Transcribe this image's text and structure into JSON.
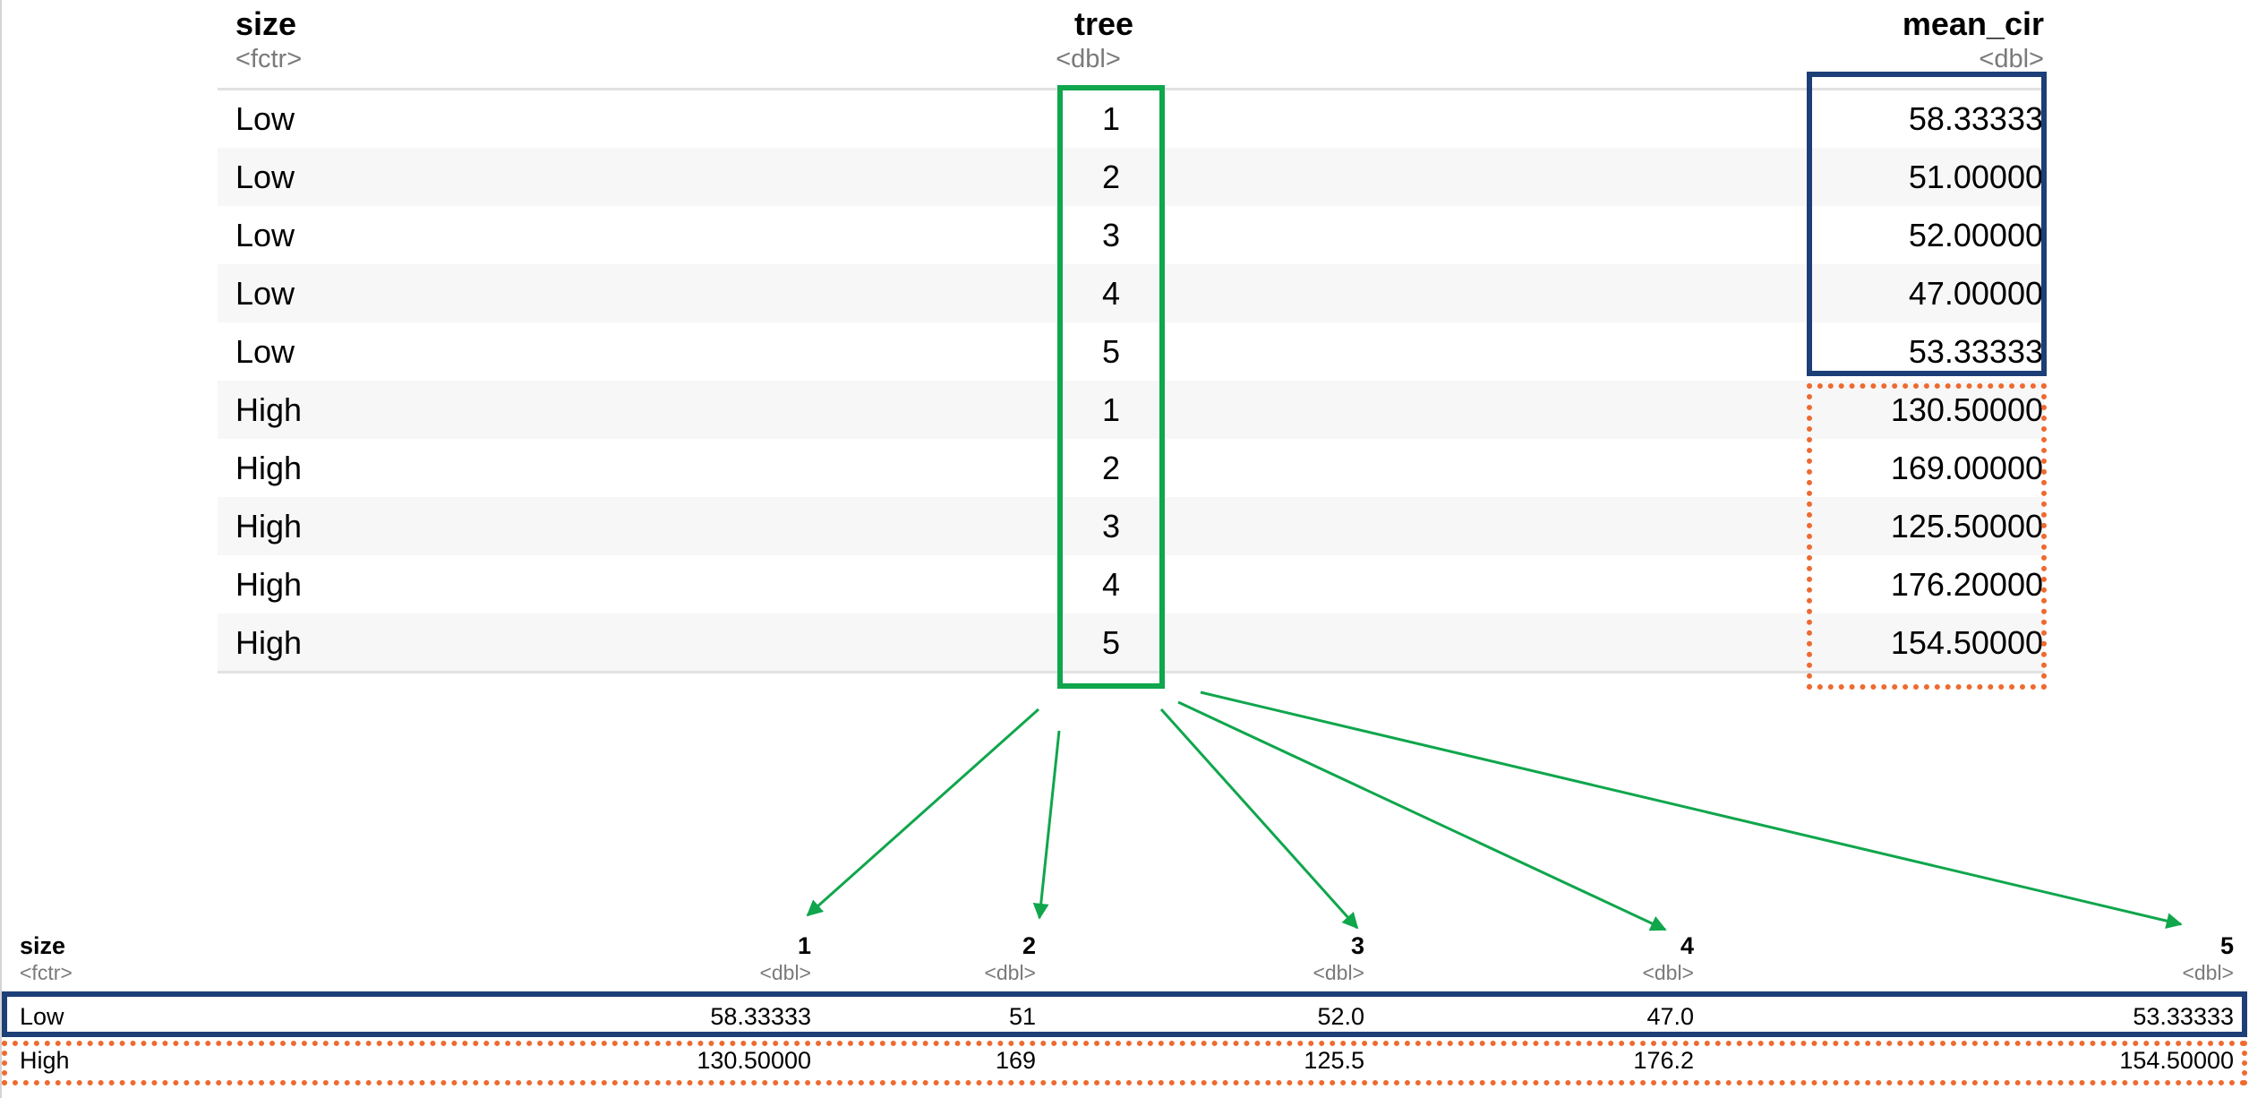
{
  "long_table": {
    "columns": [
      {
        "name": "size",
        "type": "<fctr>"
      },
      {
        "name": "tree",
        "type": "<dbl>"
      },
      {
        "name": "mean_cir",
        "type": "<dbl>"
      }
    ],
    "rows": [
      {
        "size": "Low",
        "tree": "1",
        "mean_cir": "58.33333"
      },
      {
        "size": "Low",
        "tree": "2",
        "mean_cir": "51.00000"
      },
      {
        "size": "Low",
        "tree": "3",
        "mean_cir": "52.00000"
      },
      {
        "size": "Low",
        "tree": "4",
        "mean_cir": "47.00000"
      },
      {
        "size": "Low",
        "tree": "5",
        "mean_cir": "53.33333"
      },
      {
        "size": "High",
        "tree": "1",
        "mean_cir": "130.50000"
      },
      {
        "size": "High",
        "tree": "2",
        "mean_cir": "169.00000"
      },
      {
        "size": "High",
        "tree": "3",
        "mean_cir": "125.50000"
      },
      {
        "size": "High",
        "tree": "4",
        "mean_cir": "176.20000"
      },
      {
        "size": "High",
        "tree": "5",
        "mean_cir": "154.50000"
      }
    ]
  },
  "wide_table": {
    "columns": [
      {
        "name": "size",
        "type": "<fctr>"
      },
      {
        "name": "1",
        "type": "<dbl>"
      },
      {
        "name": "2",
        "type": "<dbl>"
      },
      {
        "name": "3",
        "type": "<dbl>"
      },
      {
        "name": "4",
        "type": "<dbl>"
      },
      {
        "name": "5",
        "type": "<dbl>"
      }
    ],
    "rows": [
      [
        "Low",
        "58.33333",
        "51",
        "52.0",
        "47.0",
        "53.33333"
      ],
      [
        "High",
        "130.50000",
        "169",
        "125.5",
        "176.2",
        "154.50000"
      ]
    ]
  },
  "colors": {
    "tree_box": "#0fa64c",
    "low_box": "#1d3f77",
    "high_box": "#ee6a30",
    "arrows": "#0fa64c"
  }
}
